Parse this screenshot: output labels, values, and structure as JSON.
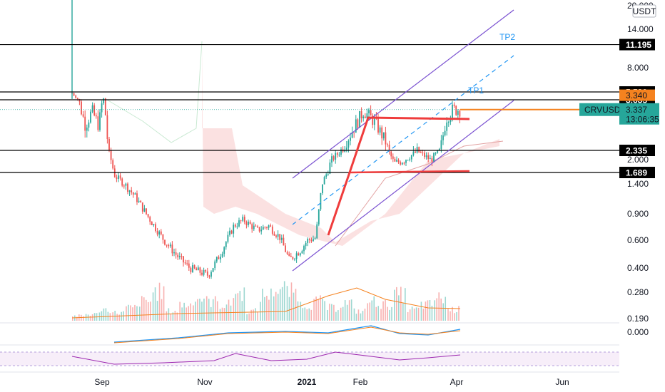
{
  "currency_badge": "USDT",
  "colors": {
    "up": "#26a69a",
    "down": "#ef5350",
    "level_line": "#000000",
    "channel": "#7b52d1",
    "channel_mid": "#2196f3",
    "trend_red": "#ef3c3c",
    "current_price": "#f5821f",
    "cloud": "#f8c8c8",
    "volume_ma": "#f5821f",
    "macd": "#2196f3",
    "rsi": "#9c27b0",
    "badge_current": "#26a69a",
    "badge_orange": "#f5821f"
  },
  "chart_data": {
    "type": "candlestick",
    "symbol": "CRVUSDT",
    "y_scale": "log",
    "x_tick_labels": [
      "Sep",
      "Nov",
      "2021",
      "Feb",
      "Apr",
      "Jun"
    ],
    "y_tick_labels": [
      "20.000",
      "14.000",
      "8.000",
      "2.000",
      "1.400",
      "0.900",
      "0.600",
      "0.400",
      "0.280",
      "0.190",
      "0.000"
    ],
    "horizontal_levels": [
      "11.195",
      "5.530",
      "3.635",
      "2.335",
      "1.689"
    ],
    "price_tags": {
      "orange_level": "3.340",
      "current": "3.337",
      "countdown": "13:06:35",
      "symbol": "CRVUSDT"
    },
    "annotations": [
      "TP2",
      "TP1"
    ],
    "price_path": [
      {
        "x": "Aug 14",
        "price": 5.2
      },
      {
        "x": "Aug 18",
        "price": 3.6
      },
      {
        "x": "Aug 22",
        "price": 2.9
      },
      {
        "x": "Aug 26",
        "price": 3.3
      },
      {
        "x": "Aug 30",
        "price": 2.9
      },
      {
        "x": "Sep 2",
        "price": 3.9
      },
      {
        "x": "Sep 5",
        "price": 2.3
      },
      {
        "x": "Sep 9",
        "price": 1.6
      },
      {
        "x": "Sep 15",
        "price": 1.4
      },
      {
        "x": "Sep 22",
        "price": 1.15
      },
      {
        "x": "Sep 30",
        "price": 0.85
      },
      {
        "x": "Oct 8",
        "price": 0.6
      },
      {
        "x": "Oct 16",
        "price": 0.48
      },
      {
        "x": "Oct 24",
        "price": 0.4
      },
      {
        "x": "Oct 30",
        "price": 0.38
      },
      {
        "x": "Nov 4",
        "price": 0.36
      },
      {
        "x": "Nov 12",
        "price": 0.5
      },
      {
        "x": "Nov 20",
        "price": 0.75
      },
      {
        "x": "Nov 26",
        "price": 0.82
      },
      {
        "x": "Dec 3",
        "price": 0.7
      },
      {
        "x": "Dec 10",
        "price": 0.75
      },
      {
        "x": "Dec 17",
        "price": 0.63
      },
      {
        "x": "Dec 23",
        "price": 0.45
      },
      {
        "x": "Dec 30",
        "price": 0.52
      },
      {
        "x": "Jan 5",
        "price": 0.6
      },
      {
        "x": "Jan 10",
        "price": 0.62
      },
      {
        "x": "Jan 14",
        "price": 1.4
      },
      {
        "x": "Jan 20",
        "price": 2.0
      },
      {
        "x": "Jan 27",
        "price": 2.4
      },
      {
        "x": "Feb 3",
        "price": 3.3
      },
      {
        "x": "Feb 10",
        "price": 3.0
      },
      {
        "x": "Feb 17",
        "price": 2.5
      },
      {
        "x": "Feb 22",
        "price": 1.9
      },
      {
        "x": "Mar 1",
        "price": 2.0
      },
      {
        "x": "Mar 9",
        "price": 2.3
      },
      {
        "x": "Mar 17",
        "price": 2.0
      },
      {
        "x": "Mar 23",
        "price": 2.3
      },
      {
        "x": "Mar 27",
        "price": 3.1
      },
      {
        "x": "Mar 31",
        "price": 3.337
      }
    ],
    "volume_relative": [
      0.15,
      0.2,
      0.35,
      0.25,
      0.4,
      0.6,
      0.9,
      0.3,
      0.5,
      0.7,
      0.6,
      0.5,
      0.85,
      0.3,
      0.8,
      1.0,
      0.9,
      0.5,
      0.6,
      0.4,
      0.55,
      0.3,
      0.6,
      0.5,
      0.8,
      0.35,
      0.5,
      0.7,
      0.35
    ],
    "rsi_band": [
      30,
      70
    ]
  }
}
